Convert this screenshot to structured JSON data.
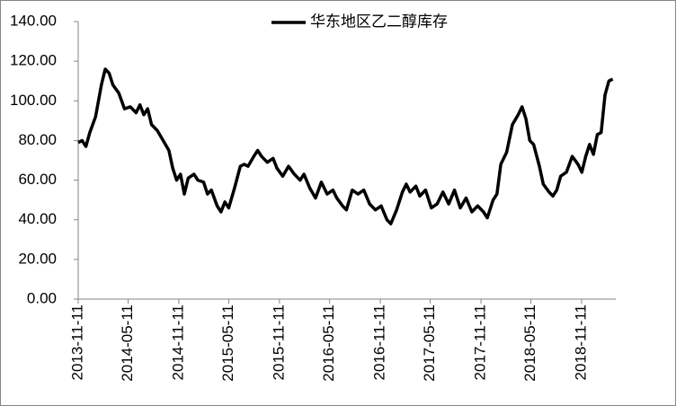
{
  "chart_data": {
    "type": "line",
    "series": [
      {
        "name": "华东地区乙二醇库存",
        "color": "#000000",
        "x": [
          "2013-11-11",
          "2013-11-25",
          "2013-12-09",
          "2013-12-23",
          "2014-01-13",
          "2014-02-03",
          "2014-02-17",
          "2014-03-03",
          "2014-03-17",
          "2014-04-07",
          "2014-04-28",
          "2014-05-19",
          "2014-06-09",
          "2014-06-23",
          "2014-07-07",
          "2014-07-21",
          "2014-08-04",
          "2014-08-25",
          "2014-09-15",
          "2014-10-06",
          "2014-10-20",
          "2014-11-03",
          "2014-11-17",
          "2014-12-01",
          "2014-12-15",
          "2015-01-05",
          "2015-01-19",
          "2015-02-09",
          "2015-02-23",
          "2015-03-09",
          "2015-03-30",
          "2015-04-13",
          "2015-04-27",
          "2015-05-11",
          "2015-06-01",
          "2015-06-22",
          "2015-07-06",
          "2015-07-20",
          "2015-08-10",
          "2015-08-24",
          "2015-09-07",
          "2015-09-28",
          "2015-10-19",
          "2015-11-02",
          "2015-11-23",
          "2015-12-14",
          "2016-01-04",
          "2016-01-25",
          "2016-02-08",
          "2016-02-29",
          "2016-03-21",
          "2016-04-11",
          "2016-05-02",
          "2016-05-23",
          "2016-06-06",
          "2016-06-27",
          "2016-07-11",
          "2016-08-01",
          "2016-08-22",
          "2016-09-12",
          "2016-10-03",
          "2016-10-24",
          "2016-11-14",
          "2016-12-05",
          "2016-12-19",
          "2017-01-09",
          "2017-01-30",
          "2017-02-13",
          "2017-02-27",
          "2017-03-20",
          "2017-04-03",
          "2017-04-24",
          "2017-05-15",
          "2017-06-05",
          "2017-06-26",
          "2017-07-17",
          "2017-08-07",
          "2017-08-28",
          "2017-09-18",
          "2017-10-09",
          "2017-10-30",
          "2017-11-20",
          "2017-12-04",
          "2017-12-25",
          "2018-01-08",
          "2018-01-22",
          "2018-02-12",
          "2018-03-05",
          "2018-03-26",
          "2018-04-09",
          "2018-04-23",
          "2018-05-07",
          "2018-05-21",
          "2018-06-11",
          "2018-06-25",
          "2018-07-16",
          "2018-07-30",
          "2018-08-13",
          "2018-08-27",
          "2018-09-17",
          "2018-10-08",
          "2018-10-29",
          "2018-11-12",
          "2018-11-26",
          "2018-12-10",
          "2018-12-24",
          "2019-01-07",
          "2019-01-21",
          "2019-02-04",
          "2019-02-18",
          "2019-03-04"
        ],
        "values": [
          79,
          80,
          77,
          84,
          92,
          108,
          116,
          114,
          108,
          104,
          96,
          97,
          94,
          98,
          93,
          96,
          88,
          85,
          80,
          75,
          66,
          60,
          63,
          53,
          61,
          63,
          60,
          59,
          53,
          55,
          47,
          44,
          49,
          46,
          56,
          67,
          68,
          67,
          72,
          75,
          72,
          69,
          71,
          66,
          62,
          67,
          63,
          60,
          63,
          56,
          51,
          59,
          53,
          55,
          51,
          47,
          45,
          55,
          53,
          55,
          48,
          45,
          47,
          40,
          38,
          45,
          54,
          58,
          54,
          57,
          52,
          55,
          46,
          48,
          54,
          48,
          55,
          46,
          51,
          44,
          47,
          44,
          41,
          50,
          53,
          68,
          74,
          88,
          93,
          97,
          91,
          80,
          78,
          67,
          58,
          54,
          52,
          55,
          62,
          64,
          72,
          68,
          64,
          72,
          78,
          73,
          83,
          84,
          103,
          110,
          111
        ]
      }
    ],
    "xlim": [
      "2013-11-11",
      "2019-03-15"
    ],
    "xticks": [
      "2013-11-11",
      "2014-05-11",
      "2014-11-11",
      "2015-05-11",
      "2015-11-11",
      "2016-05-11",
      "2016-11-11",
      "2017-05-11",
      "2017-11-11",
      "2018-05-11",
      "2018-11-11"
    ],
    "ylim": [
      0,
      140
    ],
    "yticks": [
      {
        "value": 0,
        "label": "0.00"
      },
      {
        "value": 20,
        "label": "20.00"
      },
      {
        "value": 40,
        "label": "40.00"
      },
      {
        "value": 60,
        "label": "60.00"
      },
      {
        "value": 80,
        "label": "80.00"
      },
      {
        "value": 100,
        "label": "100.00"
      },
      {
        "value": 120,
        "label": "120.00"
      },
      {
        "value": 140,
        "label": "140.00"
      }
    ],
    "legend": "top"
  }
}
